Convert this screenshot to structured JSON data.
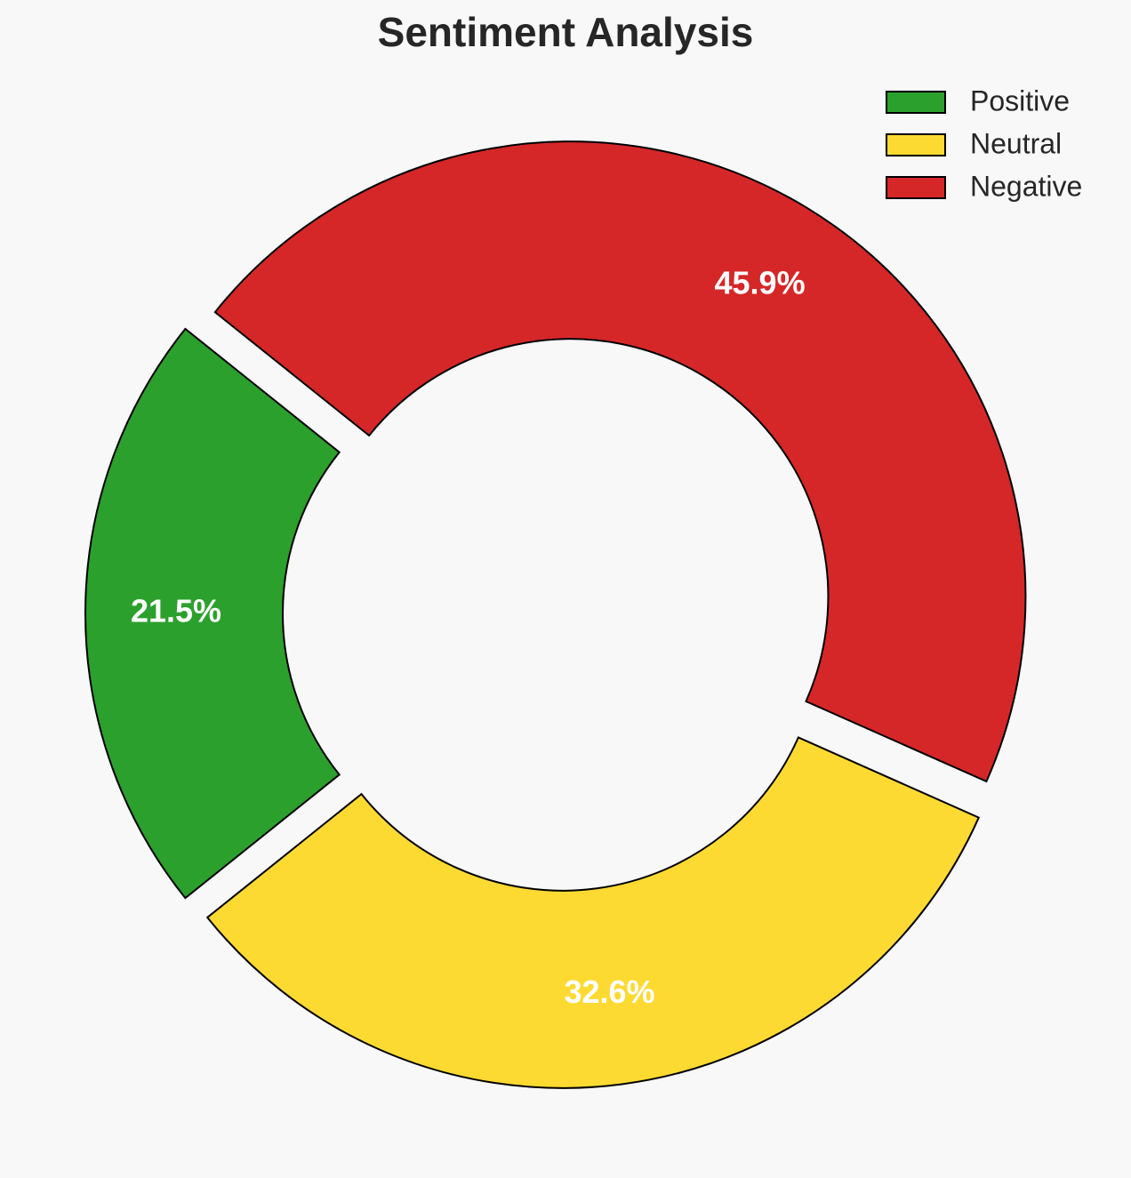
{
  "chart_data": {
    "type": "donut",
    "title": "Sentiment Analysis",
    "categories": [
      "Positive",
      "Neutral",
      "Negative"
    ],
    "values": [
      21.5,
      32.6,
      45.9
    ],
    "value_labels": [
      "21.5%",
      "32.6%",
      "45.9%"
    ],
    "colors": [
      "#2ca02c",
      "#fdda31",
      "#d62728"
    ],
    "legend": "upper right"
  }
}
